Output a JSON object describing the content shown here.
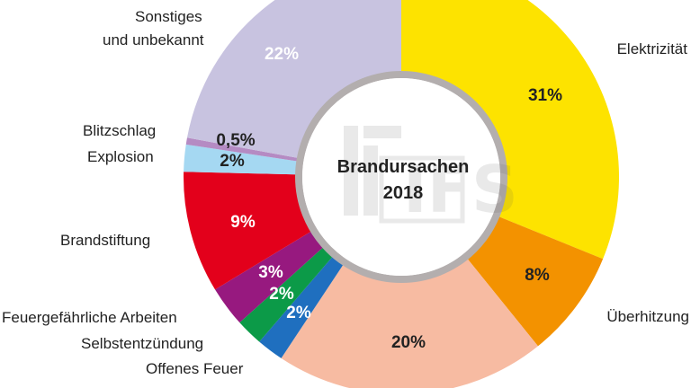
{
  "chart_data": {
    "type": "pie",
    "title": "Brandursachen",
    "subtitle": "2018",
    "unit": "%",
    "slices": [
      {
        "label": "Elektrizität",
        "value": 31,
        "display": "31%",
        "color": "#fde300",
        "text_color": "#222222"
      },
      {
        "label": "Überhitzung",
        "value": 8,
        "display": "8%",
        "color": "#f39200",
        "text_color": "#222222"
      },
      {
        "label": "",
        "value": 20,
        "display": "20%",
        "color": "#f7bba2",
        "text_color": "#222222"
      },
      {
        "label": "Offenes Feuer",
        "value": 2,
        "display": "2%",
        "color": "#1f6fbf",
        "text_color": "#ffffff"
      },
      {
        "label": "Selbstentzündung",
        "value": 2,
        "display": "2%",
        "color": "#0c9a48",
        "text_color": "#ffffff"
      },
      {
        "label": "Feuergefährliche Arbeiten",
        "value": 3,
        "display": "3%",
        "color": "#97197f",
        "text_color": "#ffffff"
      },
      {
        "label": "Brandstiftung",
        "value": 9,
        "display": "9%",
        "color": "#e3001b",
        "text_color": "#ffffff"
      },
      {
        "label": "Explosion",
        "value": 2,
        "display": "2%",
        "color": "#a5d8f2",
        "text_color": "#222222"
      },
      {
        "label": "Blitzschlag",
        "value": 0.5,
        "display": "0,5%",
        "color": "#b58bc3",
        "text_color": "#222222"
      },
      {
        "label": "Sonstiges und unbekannt",
        "value": 22,
        "display": "22%",
        "color": "#c8c3e0",
        "text_color": "#ffffff"
      }
    ]
  },
  "center_text": {
    "line1": "Brandursachen",
    "line2": "2018"
  },
  "legend_labels": {
    "sonstiges_1": "Sonstiges",
    "sonstiges_2": "und unbekannt",
    "elektrizitaet": "Elektrizität",
    "blitzschlag": "Blitzschlag",
    "explosion": "Explosion",
    "brandstiftung": "Brandstiftung",
    "ueberhitzung": "Überhitzung",
    "feuergefaehrlich": "Feuergefährliche Arbeiten",
    "selbstentzuendung": "Selbstentzündung",
    "offenes_feuer": "Offenes Feuer"
  },
  "watermark": "IFS"
}
